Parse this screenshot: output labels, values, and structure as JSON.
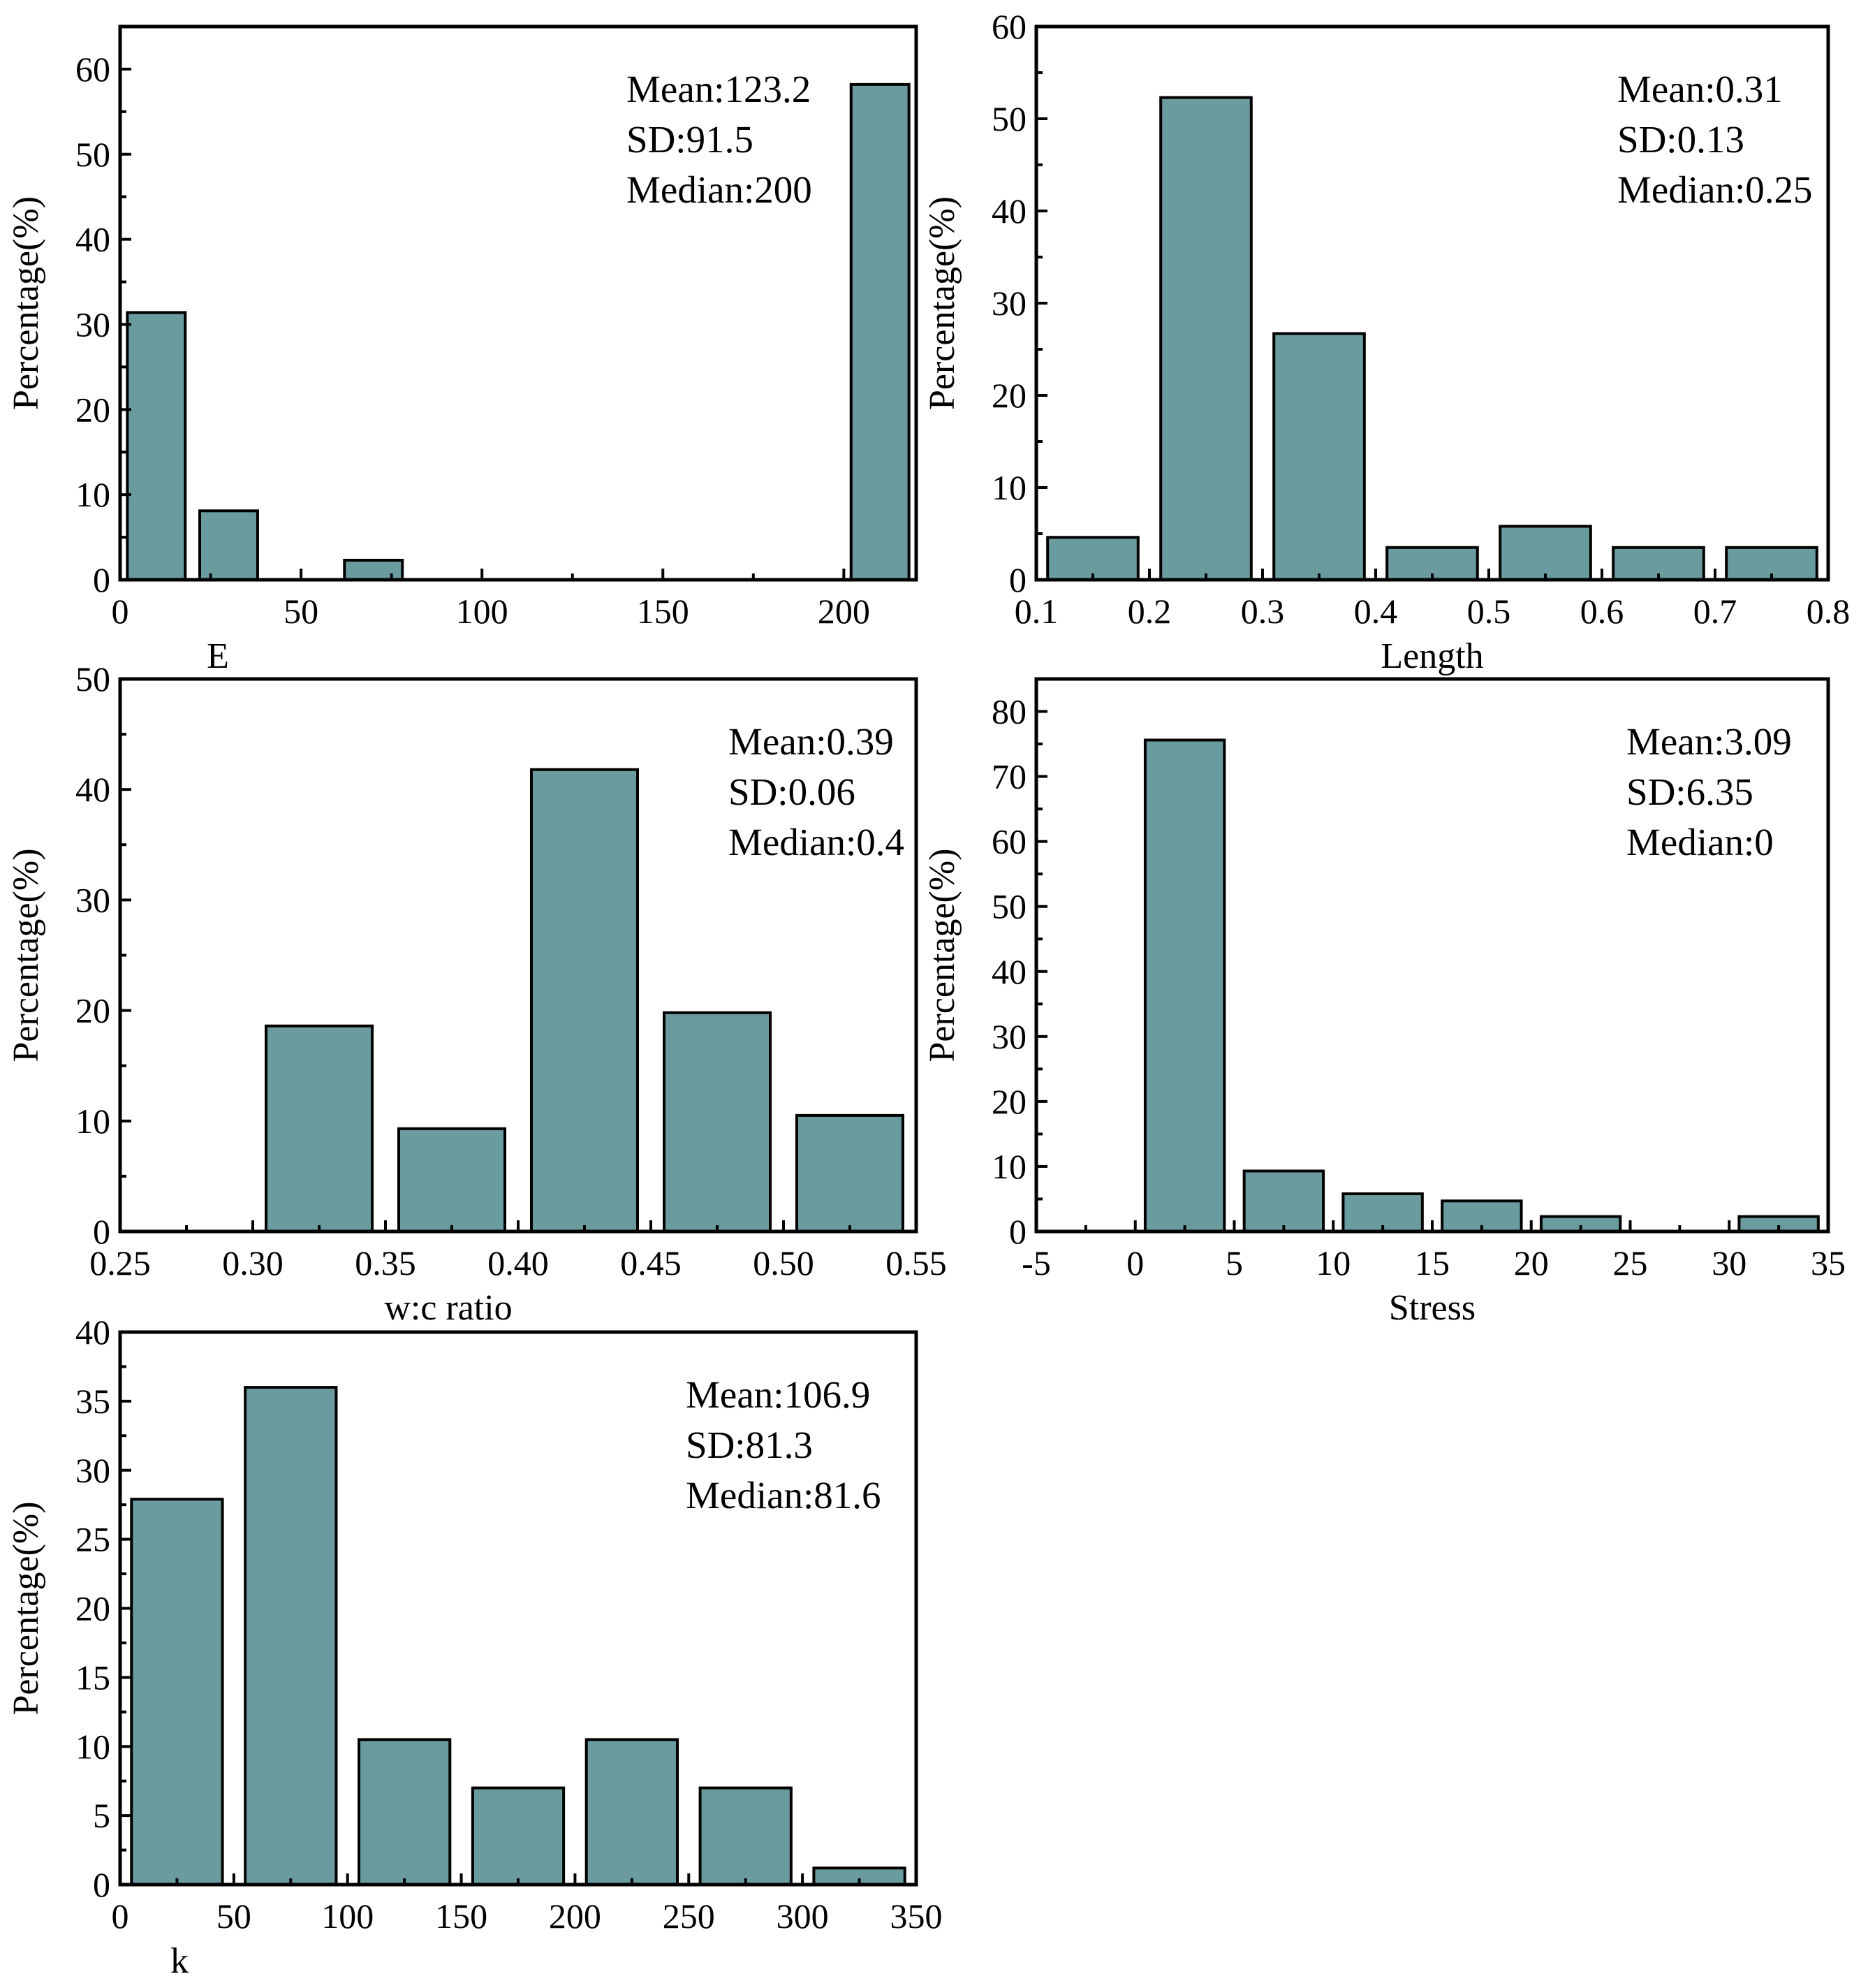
{
  "chart_data": [
    {
      "type": "bar",
      "xlabel": "E",
      "ylabel": "Percentage(%)",
      "xlim": [
        0,
        220
      ],
      "ylim": [
        0,
        65
      ],
      "xticks": [
        0,
        50,
        100,
        150,
        200
      ],
      "xtick_labels": [
        "0",
        "50",
        "100",
        "150",
        "200"
      ],
      "yticks": [
        0,
        10,
        20,
        30,
        40,
        50,
        60
      ],
      "ytick_labels": [
        "0",
        "10",
        "20",
        "30",
        "40",
        "50",
        "60"
      ],
      "bars": [
        {
          "x0": 2,
          "x1": 18,
          "value": 31.4
        },
        {
          "x0": 22,
          "x1": 38,
          "value": 8.1
        },
        {
          "x0": 62,
          "x1": 78,
          "value": 2.3
        },
        {
          "x0": 202,
          "x1": 218,
          "value": 58.2
        }
      ],
      "annotations": [
        "Mean:123.2",
        "SD:91.5",
        "Median:200"
      ],
      "bar_color": "#6a9c9f"
    },
    {
      "type": "bar",
      "xlabel": "Length",
      "ylabel": "Percentage(%)",
      "xlim": [
        0.1,
        0.8
      ],
      "ylim": [
        0,
        60
      ],
      "xticks": [
        0.1,
        0.2,
        0.3,
        0.4,
        0.5,
        0.6,
        0.7,
        0.8
      ],
      "xtick_labels": [
        "0.1",
        "0.2",
        "0.3",
        "0.4",
        "0.5",
        "0.6",
        "0.7",
        "0.8"
      ],
      "yticks": [
        0,
        10,
        20,
        30,
        40,
        50,
        60
      ],
      "ytick_labels": [
        "0",
        "10",
        "20",
        "30",
        "40",
        "50",
        "60"
      ],
      "bars": [
        {
          "x0": 0.11,
          "x1": 0.19,
          "value": 4.6
        },
        {
          "x0": 0.21,
          "x1": 0.29,
          "value": 52.3
        },
        {
          "x0": 0.31,
          "x1": 0.39,
          "value": 26.7
        },
        {
          "x0": 0.41,
          "x1": 0.49,
          "value": 3.5
        },
        {
          "x0": 0.51,
          "x1": 0.59,
          "value": 5.8
        },
        {
          "x0": 0.61,
          "x1": 0.69,
          "value": 3.5
        },
        {
          "x0": 0.71,
          "x1": 0.79,
          "value": 3.5
        }
      ],
      "annotations": [
        "Mean:0.31",
        "SD:0.13",
        "Median:0.25"
      ],
      "bar_color": "#6a9c9f"
    },
    {
      "type": "bar",
      "xlabel": "w:c ratio",
      "ylabel": "Percentage(%)",
      "xlim": [
        0.25,
        0.55
      ],
      "ylim": [
        0,
        50
      ],
      "xticks": [
        0.25,
        0.3,
        0.35,
        0.4,
        0.45,
        0.5,
        0.55
      ],
      "xtick_labels": [
        "0.25",
        "0.30",
        "0.35",
        "0.40",
        "0.45",
        "0.50",
        "0.55"
      ],
      "yticks": [
        0,
        10,
        20,
        30,
        40,
        50
      ],
      "ytick_labels": [
        "0",
        "10",
        "20",
        "30",
        "40",
        "50"
      ],
      "bars": [
        {
          "x0": 0.305,
          "x1": 0.345,
          "value": 18.6
        },
        {
          "x0": 0.355,
          "x1": 0.395,
          "value": 9.3
        },
        {
          "x0": 0.405,
          "x1": 0.445,
          "value": 41.8
        },
        {
          "x0": 0.455,
          "x1": 0.495,
          "value": 19.8
        },
        {
          "x0": 0.505,
          "x1": 0.545,
          "value": 10.5
        }
      ],
      "annotations": [
        "Mean:0.39",
        "SD:0.06",
        "Median:0.4"
      ],
      "bar_color": "#6a9c9f"
    },
    {
      "type": "bar",
      "xlabel": "Stress",
      "ylabel": "Percentage(%)",
      "xlim": [
        -5,
        35
      ],
      "ylim": [
        0,
        85
      ],
      "xticks": [
        -5,
        0,
        5,
        10,
        15,
        20,
        25,
        30,
        35
      ],
      "xtick_labels": [
        "-5",
        "0",
        "5",
        "10",
        "15",
        "20",
        "25",
        "30",
        "35"
      ],
      "yticks": [
        0,
        10,
        20,
        30,
        40,
        50,
        60,
        70,
        80
      ],
      "ytick_labels": [
        "0",
        "10",
        "20",
        "30",
        "40",
        "50",
        "60",
        "70",
        "80"
      ],
      "bars": [
        {
          "x0": 0.5,
          "x1": 4.5,
          "value": 75.6
        },
        {
          "x0": 5.5,
          "x1": 9.5,
          "value": 9.3
        },
        {
          "x0": 10.5,
          "x1": 14.5,
          "value": 5.8
        },
        {
          "x0": 15.5,
          "x1": 19.5,
          "value": 4.7
        },
        {
          "x0": 20.5,
          "x1": 24.5,
          "value": 2.3
        },
        {
          "x0": 30.5,
          "x1": 34.5,
          "value": 2.3
        }
      ],
      "annotations": [
        "Mean:3.09",
        "SD:6.35",
        "Median:0"
      ],
      "bar_color": "#6a9c9f"
    },
    {
      "type": "bar",
      "xlabel": "k",
      "ylabel": "Percentage(%)",
      "xlim": [
        0,
        350
      ],
      "ylim": [
        0,
        40
      ],
      "xticks": [
        0,
        50,
        100,
        150,
        200,
        250,
        300,
        350
      ],
      "xtick_labels": [
        "0",
        "50",
        "100",
        "150",
        "200",
        "250",
        "300",
        "350"
      ],
      "yticks": [
        0,
        5,
        10,
        15,
        20,
        25,
        30,
        35,
        40
      ],
      "ytick_labels": [
        "0",
        "5",
        "10",
        "15",
        "20",
        "25",
        "30",
        "35",
        "40"
      ],
      "bars": [
        {
          "x0": 5,
          "x1": 45,
          "value": 27.9
        },
        {
          "x0": 55,
          "x1": 95,
          "value": 36.0
        },
        {
          "x0": 105,
          "x1": 145,
          "value": 10.5
        },
        {
          "x0": 155,
          "x1": 195,
          "value": 7.0
        },
        {
          "x0": 205,
          "x1": 245,
          "value": 10.5
        },
        {
          "x0": 255,
          "x1": 295,
          "value": 7.0
        },
        {
          "x0": 305,
          "x1": 345,
          "value": 1.2
        }
      ],
      "annotations": [
        "Mean:106.9",
        "SD:81.3",
        "Median:81.6"
      ],
      "bar_color": "#6a9c9f"
    }
  ]
}
